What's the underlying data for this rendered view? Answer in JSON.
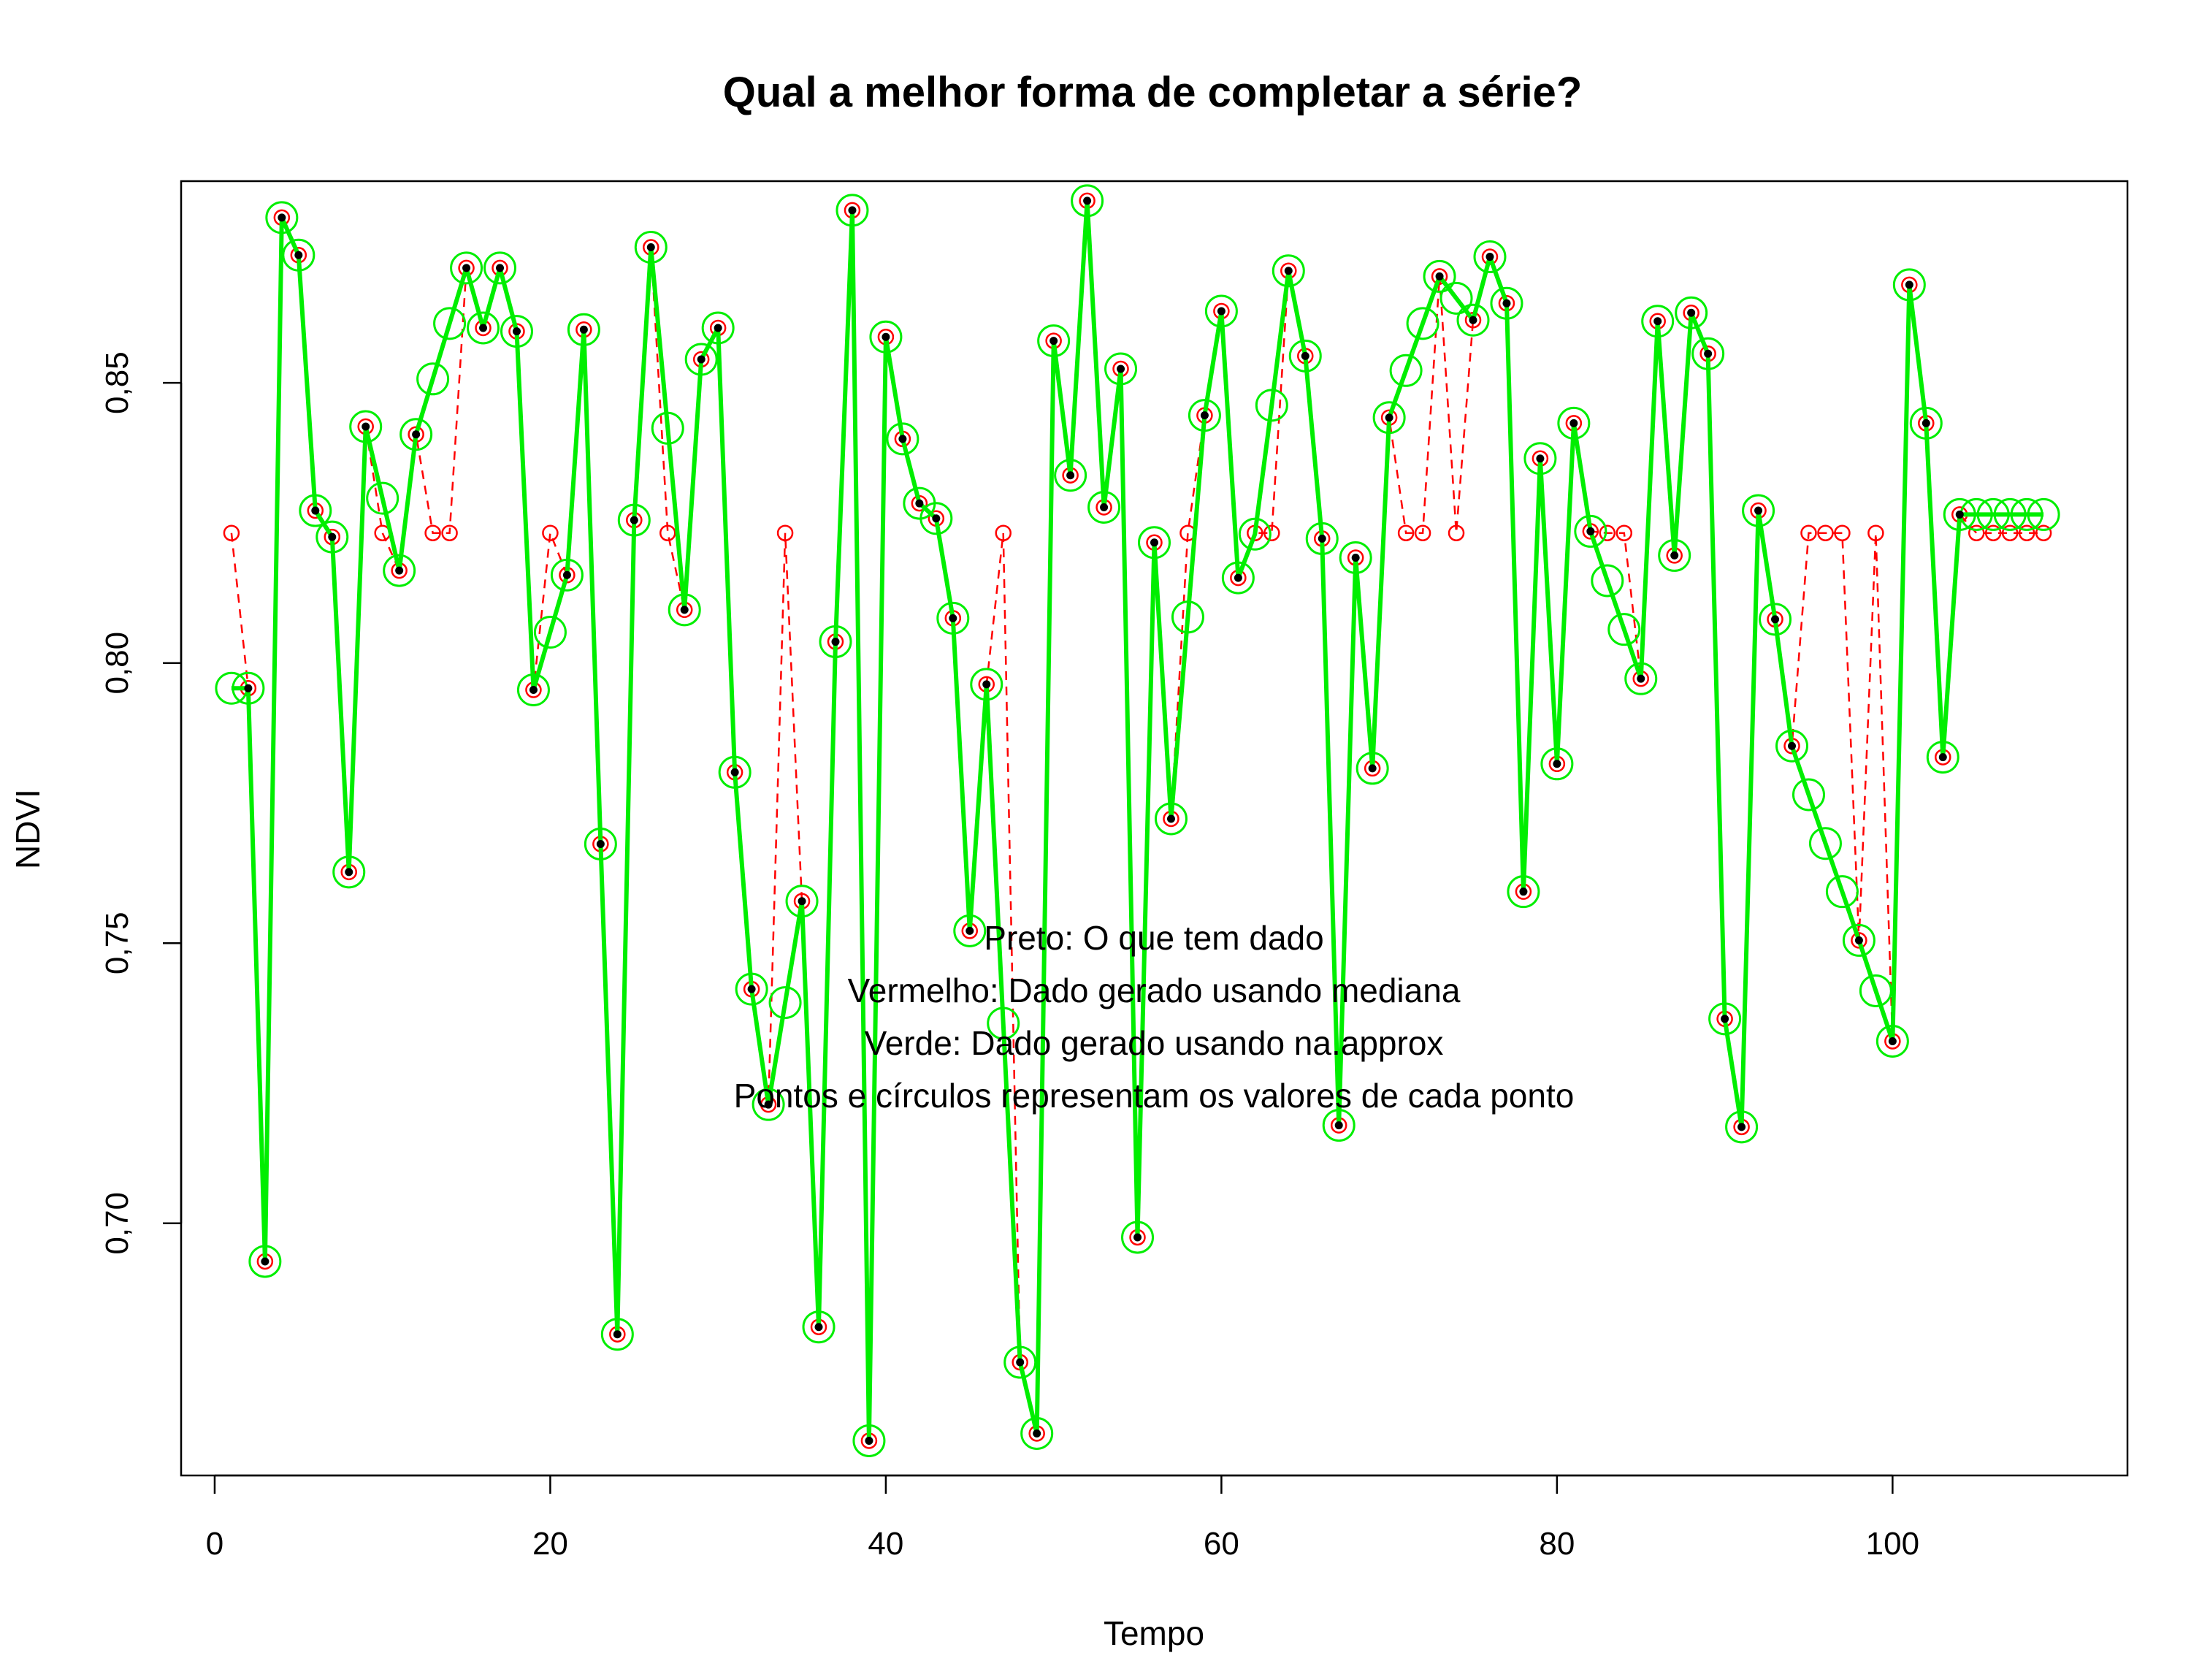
{
  "chart_data": {
    "type": "line",
    "title": "Qual a melhor forma de completar a série?",
    "xlabel": "Tempo",
    "ylabel": "NDVI",
    "xlim": [
      -2,
      114
    ],
    "ylim": [
      0.655,
      0.886
    ],
    "x_ticks": [
      0,
      20,
      40,
      60,
      80,
      100
    ],
    "x_tick_labels": [
      "0",
      "20",
      "40",
      "60",
      "80",
      "100"
    ],
    "y_ticks": [
      0.7,
      0.75,
      0.8,
      0.85
    ],
    "y_tick_labels": [
      "0,70",
      "0,75",
      "0,80",
      "0,85"
    ],
    "grid": false,
    "colors": {
      "observed": "#000000",
      "median": "#ff0000",
      "approx": "#00ee00",
      "axis": "#000000"
    },
    "annotations": [
      "Preto: O que tem dado",
      "Vermelho: Dado gerado usando mediana",
      "Verde: Dado gerado usando na.approx",
      "Pontos e círculos representam os valores de cada ponto"
    ],
    "series": [
      {
        "key": "observed",
        "style": "black dots",
        "values": [
          null,
          0.7955,
          0.6932,
          0.8795,
          0.8728,
          0.8272,
          0.8225,
          0.7627,
          0.8422,
          null,
          0.8165,
          0.8408,
          null,
          null,
          0.8705,
          0.8598,
          0.8705,
          0.8592,
          0.7952,
          null,
          0.8157,
          0.8595,
          0.7677,
          0.6802,
          0.8255,
          0.8742,
          null,
          0.8095,
          0.8542,
          0.8598,
          0.7805,
          0.7418,
          0.7212,
          null,
          0.7575,
          0.6815,
          0.8038,
          0.8808,
          0.6612,
          0.8582,
          0.84,
          0.8285,
          0.8258,
          0.808,
          0.7522,
          0.7962,
          null,
          0.6752,
          0.6625,
          0.8575,
          0.8335,
          0.8825,
          0.8278,
          0.8525,
          0.6975,
          0.8215,
          0.7722,
          null,
          0.8442,
          0.8628,
          0.8152,
          null,
          null,
          0.87,
          0.8548,
          0.8222,
          0.7175,
          0.8188,
          0.7812,
          0.8438,
          null,
          null,
          0.869,
          null,
          0.8612,
          0.8725,
          0.8642,
          0.7592,
          0.8365,
          0.782,
          0.8428,
          0.8235,
          null,
          null,
          0.7972,
          0.861,
          0.8192,
          0.8625,
          0.8552,
          0.7365,
          0.7172,
          0.8272,
          0.8078,
          0.7852,
          null,
          null,
          null,
          0.7505,
          null,
          0.7325,
          0.8675,
          0.8428,
          0.7832,
          0.8265,
          null,
          null,
          null,
          null,
          null
        ]
      },
      {
        "key": "median",
        "style": "red dashed line with small circles",
        "values": [
          0.8232,
          0.7955,
          0.6932,
          0.8795,
          0.8728,
          0.8272,
          0.8225,
          0.7627,
          0.8422,
          0.8232,
          0.8165,
          0.8408,
          0.8232,
          0.8232,
          0.8705,
          0.8598,
          0.8705,
          0.8592,
          0.7952,
          0.8232,
          0.8157,
          0.8595,
          0.7677,
          0.6802,
          0.8255,
          0.8742,
          0.8232,
          0.8095,
          0.8542,
          0.8598,
          0.7805,
          0.7418,
          0.7212,
          0.8232,
          0.7575,
          0.6815,
          0.8038,
          0.8808,
          0.6612,
          0.8582,
          0.84,
          0.8285,
          0.8258,
          0.808,
          0.7522,
          0.7962,
          0.8232,
          0.6752,
          0.6625,
          0.8575,
          0.8335,
          0.8825,
          0.8278,
          0.8525,
          0.6975,
          0.8215,
          0.7722,
          0.8232,
          0.8442,
          0.8628,
          0.8152,
          0.8232,
          0.8232,
          0.87,
          0.8548,
          0.8222,
          0.7175,
          0.8188,
          0.7812,
          0.8438,
          0.8232,
          0.8232,
          0.869,
          0.8232,
          0.8612,
          0.8725,
          0.8642,
          0.7592,
          0.8365,
          0.782,
          0.8428,
          0.8235,
          0.8232,
          0.8232,
          0.7972,
          0.861,
          0.8192,
          0.8625,
          0.8552,
          0.7365,
          0.7172,
          0.8272,
          0.8078,
          0.7852,
          0.8232,
          0.8232,
          0.8232,
          0.7505,
          0.8232,
          0.7325,
          0.8675,
          0.8428,
          0.7832,
          0.8265,
          0.8232,
          0.8232,
          0.8232,
          0.8232,
          0.8232
        ]
      },
      {
        "key": "approx",
        "style": "green solid line with large circles",
        "values": [
          0.7955,
          0.7955,
          0.6932,
          0.8795,
          0.8728,
          0.8272,
          0.8225,
          0.7627,
          0.8422,
          0.8294,
          0.8165,
          0.8408,
          0.8507,
          0.8606,
          0.8705,
          0.8598,
          0.8705,
          0.8592,
          0.7952,
          0.8055,
          0.8157,
          0.8595,
          0.7677,
          0.6802,
          0.8255,
          0.8742,
          0.8419,
          0.8095,
          0.8542,
          0.8598,
          0.7805,
          0.7418,
          0.7212,
          0.7394,
          0.7575,
          0.6815,
          0.8038,
          0.8808,
          0.6612,
          0.8582,
          0.84,
          0.8285,
          0.8258,
          0.808,
          0.7522,
          0.7962,
          0.7357,
          0.6752,
          0.6625,
          0.8575,
          0.8335,
          0.8825,
          0.8278,
          0.8525,
          0.6975,
          0.8215,
          0.7722,
          0.8082,
          0.8442,
          0.8628,
          0.8152,
          0.823,
          0.846,
          0.87,
          0.8548,
          0.8222,
          0.7175,
          0.8188,
          0.7812,
          0.8438,
          0.8522,
          0.8606,
          0.869,
          0.8651,
          0.8612,
          0.8725,
          0.8642,
          0.7592,
          0.8365,
          0.782,
          0.8428,
          0.8235,
          0.8147,
          0.806,
          0.7972,
          0.861,
          0.8192,
          0.8625,
          0.8552,
          0.7365,
          0.7172,
          0.8272,
          0.8078,
          0.7852,
          0.7765,
          0.7678,
          0.7592,
          0.7505,
          0.7415,
          0.7325,
          0.8675,
          0.8428,
          0.7832,
          0.8265,
          0.8265,
          0.8265,
          0.8265,
          0.8265,
          0.8265
        ]
      }
    ]
  }
}
